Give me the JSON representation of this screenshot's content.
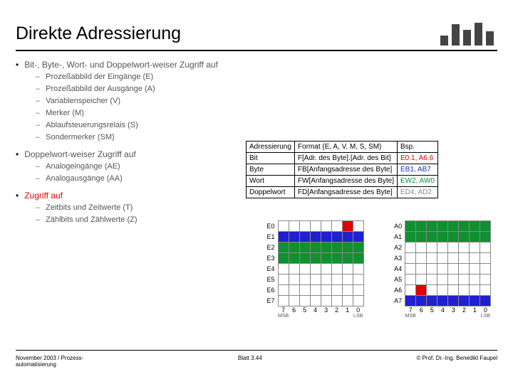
{
  "title": "Direkte Adressierung",
  "logo": {
    "bars_color": "#444444",
    "bars": [
      14,
      30,
      22,
      32,
      20
    ]
  },
  "bullets": [
    {
      "level": 1,
      "text": "Bit-, Byte-, Wort- und Doppelwort-weiser Zugriff auf",
      "red_suffix": ""
    },
    {
      "level": 2,
      "text": "Prozeßabbild der Eingänge (E)"
    },
    {
      "level": 2,
      "text": "Prozeßabbild der Ausgänge (A)"
    },
    {
      "level": 2,
      "text": "Variablenspeicher (V)"
    },
    {
      "level": 2,
      "text": "Merker (M)"
    },
    {
      "level": 2,
      "text": "Ablaufsteuerungsrelais (S)"
    },
    {
      "level": 2,
      "text": "Sondermerker (SM)"
    },
    {
      "level": 1,
      "text": "Doppelwort-weiser Zugriff auf"
    },
    {
      "level": 2,
      "text": "Analogeingänge (AE)"
    },
    {
      "level": 2,
      "text": "Analogausgänge (AA)"
    },
    {
      "level": 1,
      "text": "Zugriff auf",
      "red": true
    },
    {
      "level": 2,
      "text": "Zeitbits und Zeitwerte (T)"
    },
    {
      "level": 2,
      "text": "Zählbits und Zählwerte (Z)"
    }
  ],
  "table": {
    "headers": [
      "Adressierung",
      "Format (E, A, V, M, S, SM)",
      "Bsp."
    ],
    "rows": [
      {
        "c0": "Bit",
        "c1": "F[Adr. des Byte].[Adr. des Bit]",
        "c2": "E0.1, A6.6",
        "c2_class": "ex-red"
      },
      {
        "c0": "Byte",
        "c1": "FB[Anfangsadresse des Byte]",
        "c2": "EB1, AB7",
        "c2_class": "ex-blue"
      },
      {
        "c0": "Wort",
        "c1": "FW[Anfangsadresse des Byte]",
        "c2": "EW2, AW0",
        "c2_class": "ex-green"
      },
      {
        "c0": "Doppelwort",
        "c1": "FD[Anfangsadresse des Byte]",
        "c2": "ED4, AD2",
        "c2_class": "ex-grey"
      }
    ],
    "font_size": 10,
    "border_color": "#000000"
  },
  "bitgrids": {
    "cols": [
      7,
      6,
      5,
      4,
      3,
      2,
      1,
      0
    ],
    "msb": "MSB",
    "lsb": "LSB",
    "left": {
      "row_labels": [
        "E0",
        "E1",
        "E2",
        "E3",
        "E4",
        "E5",
        "E6",
        "E7"
      ],
      "cells": {
        "colors": {
          "red": "#e00000",
          "blue": "#2020d0",
          "green": "#109030",
          "white": "#ffffff"
        },
        "grid": [
          [
            "white",
            "white",
            "white",
            "white",
            "white",
            "white",
            "red",
            "white"
          ],
          [
            "blue",
            "blue",
            "blue",
            "blue",
            "blue",
            "blue",
            "blue",
            "blue"
          ],
          [
            "green",
            "green",
            "green",
            "green",
            "green",
            "green",
            "green",
            "green"
          ],
          [
            "green",
            "green",
            "green",
            "green",
            "green",
            "green",
            "green",
            "green"
          ],
          [
            "white",
            "white",
            "white",
            "white",
            "white",
            "white",
            "white",
            "white"
          ],
          [
            "white",
            "white",
            "white",
            "white",
            "white",
            "white",
            "white",
            "white"
          ],
          [
            "white",
            "white",
            "white",
            "white",
            "white",
            "white",
            "white",
            "white"
          ],
          [
            "white",
            "white",
            "white",
            "white",
            "white",
            "white",
            "white",
            "white"
          ]
        ]
      }
    },
    "right": {
      "row_labels": [
        "A0",
        "A1",
        "A2",
        "A3",
        "A4",
        "A5",
        "A6",
        "A7"
      ],
      "cells": {
        "colors": {
          "red": "#e00000",
          "blue": "#2020d0",
          "green": "#109030",
          "white": "#ffffff"
        },
        "grid": [
          [
            "green",
            "green",
            "green",
            "green",
            "green",
            "green",
            "green",
            "green"
          ],
          [
            "green",
            "green",
            "green",
            "green",
            "green",
            "green",
            "green",
            "green"
          ],
          [
            "white",
            "white",
            "white",
            "white",
            "white",
            "white",
            "white",
            "white"
          ],
          [
            "white",
            "white",
            "white",
            "white",
            "white",
            "white",
            "white",
            "white"
          ],
          [
            "white",
            "white",
            "white",
            "white",
            "white",
            "white",
            "white",
            "white"
          ],
          [
            "white",
            "white",
            "white",
            "white",
            "white",
            "white",
            "white",
            "white"
          ],
          [
            "white",
            "red",
            "white",
            "white",
            "white",
            "white",
            "white",
            "white"
          ],
          [
            "blue",
            "blue",
            "blue",
            "blue",
            "blue",
            "blue",
            "blue",
            "blue"
          ]
        ]
      }
    }
  },
  "footer": {
    "left_line1": "November 2003 / Prozess-",
    "left_line2": "automatisierung",
    "mid": "Blatt 3.44",
    "right": "© Prof. Dr.-Ing. Benedikt Faupel"
  }
}
